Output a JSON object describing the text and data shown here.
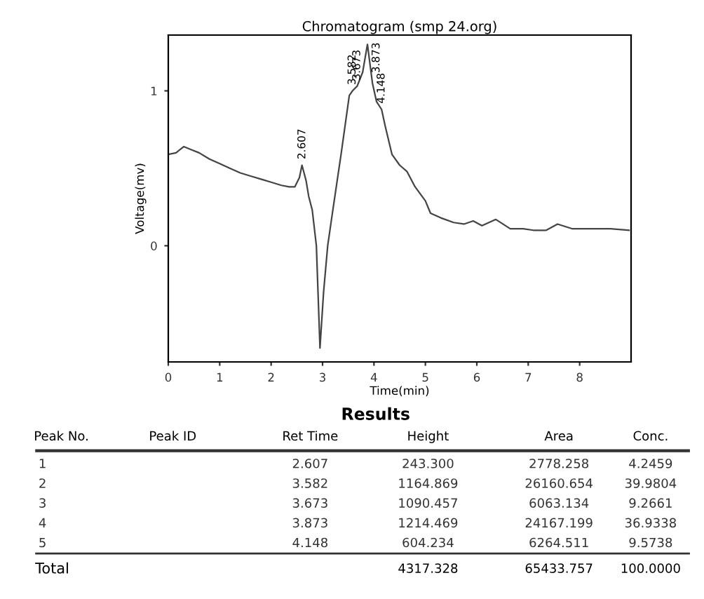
{
  "chart_data": {
    "type": "line",
    "title": "Chromatogram (smp 24.org)",
    "xlabel": "Time(min)",
    "ylabel": "Voltage(mv)",
    "x": [
      0,
      0.15,
      0.3,
      0.45,
      0.6,
      0.8,
      1.0,
      1.2,
      1.4,
      1.6,
      1.8,
      2.0,
      2.2,
      2.35,
      2.46,
      2.55,
      2.6,
      2.68,
      2.73,
      2.8,
      2.88,
      2.95,
      3.02,
      3.1,
      3.2,
      3.36,
      3.52,
      3.582,
      3.673,
      3.78,
      3.873,
      3.97,
      4.05,
      4.148,
      4.22,
      4.35,
      4.5,
      4.64,
      4.8,
      5.0,
      5.1,
      5.3,
      5.55,
      5.75,
      5.93,
      6.1,
      6.37,
      6.65,
      6.9,
      7.1,
      7.35,
      7.57,
      7.85,
      8.2,
      8.6,
      8.96
    ],
    "series": [
      {
        "color": "#444444",
        "values": [
          0.59,
          0.6,
          0.64,
          0.62,
          0.6,
          0.56,
          0.53,
          0.5,
          0.47,
          0.45,
          0.43,
          0.41,
          0.39,
          0.38,
          0.38,
          0.44,
          0.52,
          0.42,
          0.32,
          0.23,
          0.0,
          -0.66,
          -0.3,
          0.0,
          0.23,
          0.59,
          0.97,
          1.0,
          1.03,
          1.12,
          1.3,
          1.05,
          0.93,
          0.88,
          0.77,
          0.59,
          0.52,
          0.48,
          0.38,
          0.29,
          0.21,
          0.18,
          0.15,
          0.14,
          0.16,
          0.13,
          0.17,
          0.11,
          0.11,
          0.1,
          0.1,
          0.14,
          0.11,
          0.11,
          0.11,
          0.1
        ]
      }
    ],
    "annotations": [
      {
        "text": "2.607",
        "x": 2.607,
        "y": 0.52
      },
      {
        "text": "3.582",
        "x": 3.582,
        "y": 1.0
      },
      {
        "text": "3.673",
        "x": 3.673,
        "y": 1.03
      },
      {
        "text": "3.873",
        "x": 3.873,
        "y": 1.3
      },
      {
        "text": "4.148",
        "x": 4.148,
        "y": 0.88
      },
      "Results",
      "Peak No.",
      "Peak ID",
      "Ret Time",
      "Height",
      "Area",
      "Conc.",
      "1",
      "2.607",
      "243.300",
      "2778.258",
      "4.2459",
      "2",
      "3.582",
      "1164.869",
      "26160.654",
      "39.9804",
      "3",
      "3.673",
      "1090.457",
      "6063.134",
      "9.2661",
      "4",
      "3.873",
      "1214.469",
      "24167.199",
      "36.9338",
      "5",
      "4.148",
      "604.234",
      "6264.511",
      "9.5738",
      "Total",
      "4317.328",
      "65433.757",
      "100.0000"
    ],
    "xlim": [
      0,
      9
    ],
    "ylim": [
      -0.75,
      1.36
    ],
    "xticks": [
      0,
      1,
      2,
      3,
      4,
      5,
      6,
      7,
      8
    ],
    "yticks": [
      0,
      1
    ],
    "grid": false,
    "legend": false
  }
}
